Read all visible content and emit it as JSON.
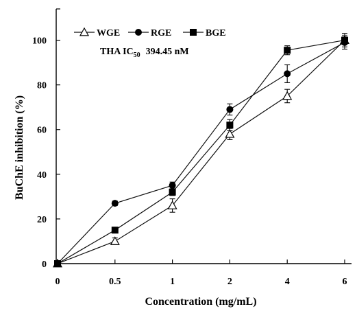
{
  "chart_data": {
    "type": "line",
    "categories": [
      "0",
      "0.5",
      "1",
      "2",
      "4",
      "6"
    ],
    "xlabel": "Concentration (mg/mL)",
    "ylabel": "BuChE inhibition (%)",
    "ylim": [
      0,
      100
    ],
    "yticks": [
      0,
      20,
      40,
      60,
      80,
      100
    ],
    "grid": false,
    "legend": "top-left",
    "annotation": {
      "prefix": "THA IC",
      "subscript": "50",
      "value": "394.45 nM"
    },
    "series": [
      {
        "name": "WGE",
        "marker": "open-triangle",
        "values": [
          0,
          10,
          26,
          58,
          75,
          100
        ],
        "errors": [
          0,
          1.5,
          3,
          2.5,
          3,
          2
        ]
      },
      {
        "name": "RGE",
        "marker": "filled-circle",
        "values": [
          0,
          27,
          35,
          69,
          85,
          99
        ],
        "errors": [
          0,
          1,
          1.5,
          2.5,
          4,
          3
        ]
      },
      {
        "name": "BGE",
        "marker": "filled-square",
        "values": [
          0,
          15,
          32,
          62,
          95.5,
          100
        ],
        "errors": [
          0,
          1,
          1.5,
          2.5,
          2,
          3
        ]
      }
    ]
  }
}
